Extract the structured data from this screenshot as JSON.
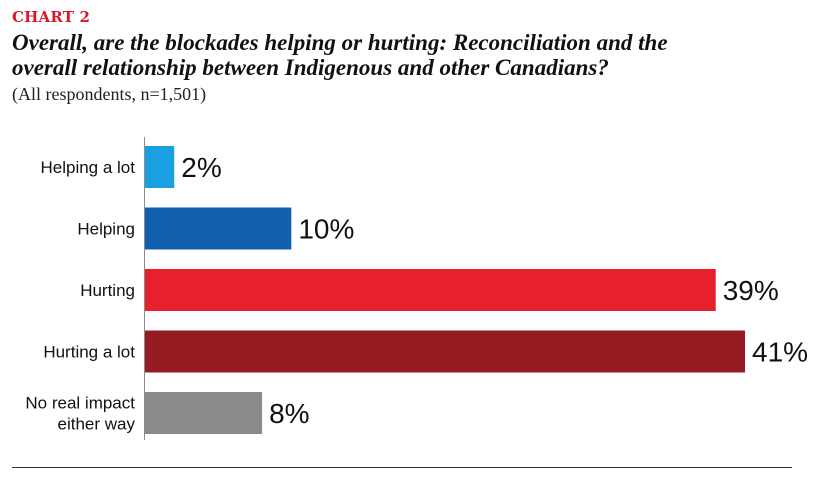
{
  "header": {
    "kicker": "CHART 2",
    "title_line1": "Overall, are the blockades helping or hurting: Reconciliation and the",
    "title_line2": "overall relationship between Indigenous and other Canadians?",
    "subtitle": "(All respondents, n=1,501)"
  },
  "chart_data": {
    "type": "bar",
    "orientation": "horizontal",
    "categories": [
      [
        "Helping a lot"
      ],
      [
        "Helping"
      ],
      [
        "Hurting"
      ],
      [
        "Hurting a lot"
      ],
      [
        "No real impact",
        "either way"
      ]
    ],
    "values": [
      2,
      10,
      39,
      41,
      8
    ],
    "value_labels": [
      "2%",
      "10%",
      "39%",
      "41%",
      "8%"
    ],
    "colors": [
      "#1aa0e0",
      "#1060ad",
      "#e8202e",
      "#941c22",
      "#8a8a8a"
    ],
    "xlim": [
      0,
      41
    ],
    "grid": false,
    "legend": "none"
  }
}
